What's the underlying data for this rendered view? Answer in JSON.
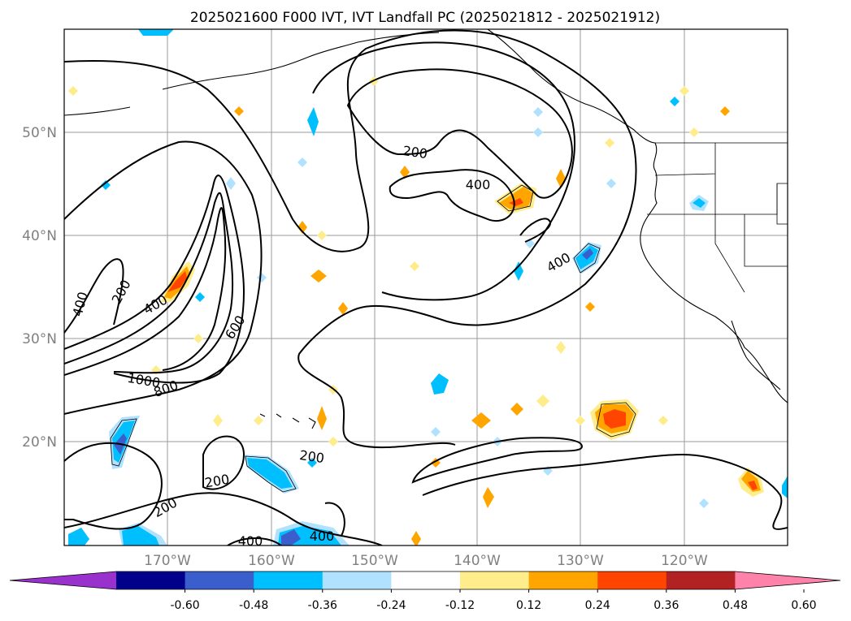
{
  "title": "2025021600 F000 IVT, IVT Landfall PC (2025021812 - 2025021912)",
  "map": {
    "lat_labels": [
      "50°N",
      "40°N",
      "30°N",
      "20°N"
    ],
    "lon_labels": [
      "170°W",
      "160°W",
      "150°W",
      "140°W",
      "130°W",
      "120°W"
    ],
    "contour_labels": [
      "200",
      "400",
      "400",
      "200",
      "400",
      "600",
      "800",
      "1000",
      "200",
      "200",
      "200",
      "400",
      "400",
      "400"
    ]
  },
  "colorbar": {
    "ticks": [
      "-0.60",
      "-0.48",
      "-0.36",
      "-0.24",
      "-0.12",
      "0.12",
      "0.24",
      "0.36",
      "0.48",
      "0.60"
    ],
    "colors": [
      "#9932cc",
      "#00008b",
      "#3a5fcd",
      "#00bfff",
      "#b0e2ff",
      "#ffffff",
      "#ffec8b",
      "#ffa500",
      "#ff4500",
      "#b22222",
      "#ff82ab"
    ]
  }
}
